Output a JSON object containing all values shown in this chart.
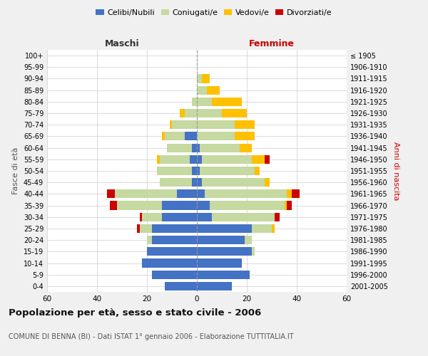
{
  "age_groups": [
    "100+",
    "95-99",
    "90-94",
    "85-89",
    "80-84",
    "75-79",
    "70-74",
    "65-69",
    "60-64",
    "55-59",
    "50-54",
    "45-49",
    "40-44",
    "35-39",
    "30-34",
    "25-29",
    "20-24",
    "15-19",
    "10-14",
    "5-9",
    "0-4"
  ],
  "birth_years": [
    "≤ 1905",
    "1906-1910",
    "1911-1915",
    "1916-1920",
    "1921-1925",
    "1926-1930",
    "1931-1935",
    "1936-1940",
    "1941-1945",
    "1946-1950",
    "1951-1955",
    "1956-1960",
    "1961-1965",
    "1966-1970",
    "1971-1975",
    "1976-1980",
    "1981-1985",
    "1986-1990",
    "1991-1995",
    "1996-2000",
    "2001-2005"
  ],
  "male": {
    "celibi": [
      0,
      0,
      0,
      0,
      0,
      0,
      0,
      5,
      2,
      3,
      2,
      2,
      8,
      14,
      14,
      18,
      18,
      20,
      22,
      18,
      13
    ],
    "coniugati": [
      0,
      0,
      0,
      0,
      2,
      5,
      10,
      8,
      10,
      12,
      14,
      13,
      25,
      18,
      8,
      5,
      2,
      0,
      0,
      0,
      0
    ],
    "vedovi": [
      0,
      0,
      0,
      0,
      0,
      2,
      1,
      1,
      0,
      1,
      0,
      0,
      0,
      0,
      0,
      0,
      0,
      0,
      0,
      0,
      0
    ],
    "divorziati": [
      0,
      0,
      0,
      0,
      0,
      0,
      0,
      0,
      0,
      0,
      0,
      0,
      3,
      3,
      1,
      1,
      0,
      0,
      0,
      0,
      0
    ]
  },
  "female": {
    "nubili": [
      0,
      0,
      0,
      0,
      0,
      0,
      0,
      0,
      1,
      2,
      1,
      2,
      3,
      5,
      6,
      22,
      19,
      22,
      18,
      21,
      14
    ],
    "coniugate": [
      0,
      0,
      2,
      4,
      6,
      10,
      15,
      15,
      16,
      20,
      22,
      25,
      33,
      30,
      25,
      8,
      3,
      1,
      0,
      0,
      0
    ],
    "vedove": [
      0,
      0,
      3,
      5,
      12,
      10,
      8,
      8,
      5,
      5,
      2,
      2,
      2,
      1,
      0,
      1,
      0,
      0,
      0,
      0,
      0
    ],
    "divorziate": [
      0,
      0,
      0,
      0,
      0,
      0,
      0,
      0,
      0,
      2,
      0,
      0,
      3,
      2,
      2,
      0,
      0,
      0,
      0,
      0,
      0
    ]
  },
  "colors": {
    "celibi_nubili": "#4472c4",
    "coniugati": "#c5d9a0",
    "vedovi": "#ffc000",
    "divorziati": "#cc0000"
  },
  "xlim": 60,
  "title": "Popolazione per età, sesso e stato civile - 2006",
  "subtitle": "COMUNE DI BENNA (BI) - Dati ISTAT 1° gennaio 2006 - Elaborazione TUTTITALIA.IT",
  "ylabel_left": "Fasce di età",
  "ylabel_right": "Anni di nascita",
  "xlabel_left": "Maschi",
  "xlabel_right": "Femmine",
  "bg_color": "#f0f0f0",
  "plot_bg_color": "#ffffff",
  "grid_color": "#cccccc"
}
